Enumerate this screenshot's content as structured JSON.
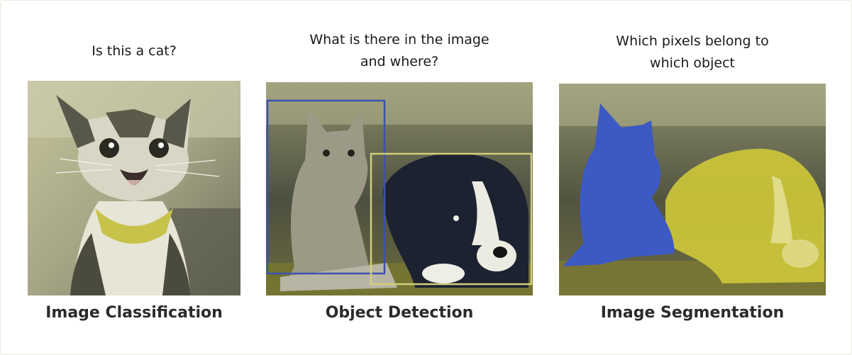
{
  "panels": [
    {
      "question_lines": [
        "Is this a cat?"
      ],
      "caption": "Image Classification"
    },
    {
      "question_lines": [
        "What is there in the image",
        "and where?"
      ],
      "caption": "Object Detection",
      "boxes": [
        {
          "label": "cat",
          "color": "#3b52b0"
        },
        {
          "label": "dog",
          "color": "#d2cf7a"
        }
      ]
    },
    {
      "question_lines": [
        "Which pixels belong to",
        "which object"
      ],
      "caption": "Image Segmentation",
      "masks": [
        {
          "label": "cat",
          "color": "#3d59c4"
        },
        {
          "label": "dog",
          "color": "#c9c33a"
        }
      ]
    }
  ]
}
